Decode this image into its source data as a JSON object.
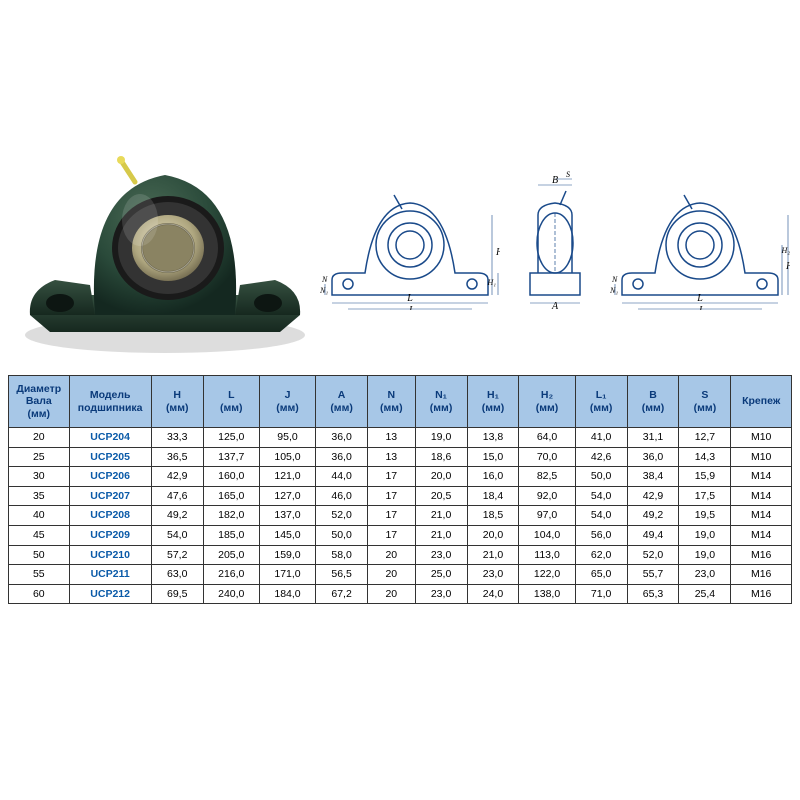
{
  "table": {
    "header_bg": "#a7c7e7",
    "header_color": "#0a3a7a",
    "border_color": "#333333",
    "model_color": "#0a5aa8",
    "columns": [
      {
        "label": "Диаметр Вала (мм)",
        "width": 56
      },
      {
        "label": "Модель подшипника",
        "width": 76
      },
      {
        "label": "H (мм)",
        "width": 48
      },
      {
        "label": "L (мм)",
        "width": 52
      },
      {
        "label": "J (мм)",
        "width": 52
      },
      {
        "label": "A (мм)",
        "width": 48
      },
      {
        "label": "N (мм)",
        "width": 44
      },
      {
        "label": "N₁ (мм)",
        "width": 48
      },
      {
        "label": "H₁ (мм)",
        "width": 48
      },
      {
        "label": "H₂ (мм)",
        "width": 52
      },
      {
        "label": "L₁ (мм)",
        "width": 48
      },
      {
        "label": "B (мм)",
        "width": 48
      },
      {
        "label": "S (мм)",
        "width": 48
      },
      {
        "label": "Крепеж",
        "width": 56
      }
    ],
    "rows": [
      [
        "20",
        "UCP204",
        "33,3",
        "125,0",
        "95,0",
        "36,0",
        "13",
        "19,0",
        "13,8",
        "64,0",
        "41,0",
        "31,1",
        "12,7",
        "M10"
      ],
      [
        "25",
        "UCP205",
        "36,5",
        "137,7",
        "105,0",
        "36,0",
        "13",
        "18,6",
        "15,0",
        "70,0",
        "42,6",
        "36,0",
        "14,3",
        "M10"
      ],
      [
        "30",
        "UCP206",
        "42,9",
        "160,0",
        "121,0",
        "44,0",
        "17",
        "20,0",
        "16,0",
        "82,5",
        "50,0",
        "38,4",
        "15,9",
        "M14"
      ],
      [
        "35",
        "UCP207",
        "47,6",
        "165,0",
        "127,0",
        "46,0",
        "17",
        "20,5",
        "18,4",
        "92,0",
        "54,0",
        "42,9",
        "17,5",
        "M14"
      ],
      [
        "40",
        "UCP208",
        "49,2",
        "182,0",
        "137,0",
        "52,0",
        "17",
        "21,0",
        "18,5",
        "97,0",
        "54,0",
        "49,2",
        "19,5",
        "M14"
      ],
      [
        "45",
        "UCP209",
        "54,0",
        "185,0",
        "145,0",
        "50,0",
        "17",
        "21,0",
        "20,0",
        "104,0",
        "56,0",
        "49,4",
        "19,0",
        "M14"
      ],
      [
        "50",
        "UCP210",
        "57,2",
        "205,0",
        "159,0",
        "58,0",
        "20",
        "23,0",
        "21,0",
        "113,0",
        "62,0",
        "52,0",
        "19,0",
        "M16"
      ],
      [
        "55",
        "UCP211",
        "63,0",
        "216,0",
        "171,0",
        "56,5",
        "20",
        "25,0",
        "23,0",
        "122,0",
        "65,0",
        "55,7",
        "23,0",
        "M16"
      ],
      [
        "60",
        "UCP212",
        "69,5",
        "240,0",
        "184,0",
        "67,2",
        "20",
        "23,0",
        "24,0",
        "138,0",
        "71,0",
        "65,3",
        "25,4",
        "M16"
      ]
    ]
  },
  "diagram": {
    "line_color": "#1a4a8a",
    "labels": {
      "B": "B",
      "S": "S",
      "A": "A",
      "H": "H",
      "H1": "H₁",
      "H2": "H₂",
      "J": "J",
      "L": "L",
      "L1": "L₁",
      "N": "N",
      "N1": "N₁"
    }
  },
  "product": {
    "body_color": "#2a4a3a",
    "body_dark": "#16281f",
    "bore_outer": "#222222",
    "bore_inner": "#c8bd9a",
    "nipple": "#d6c94a"
  }
}
